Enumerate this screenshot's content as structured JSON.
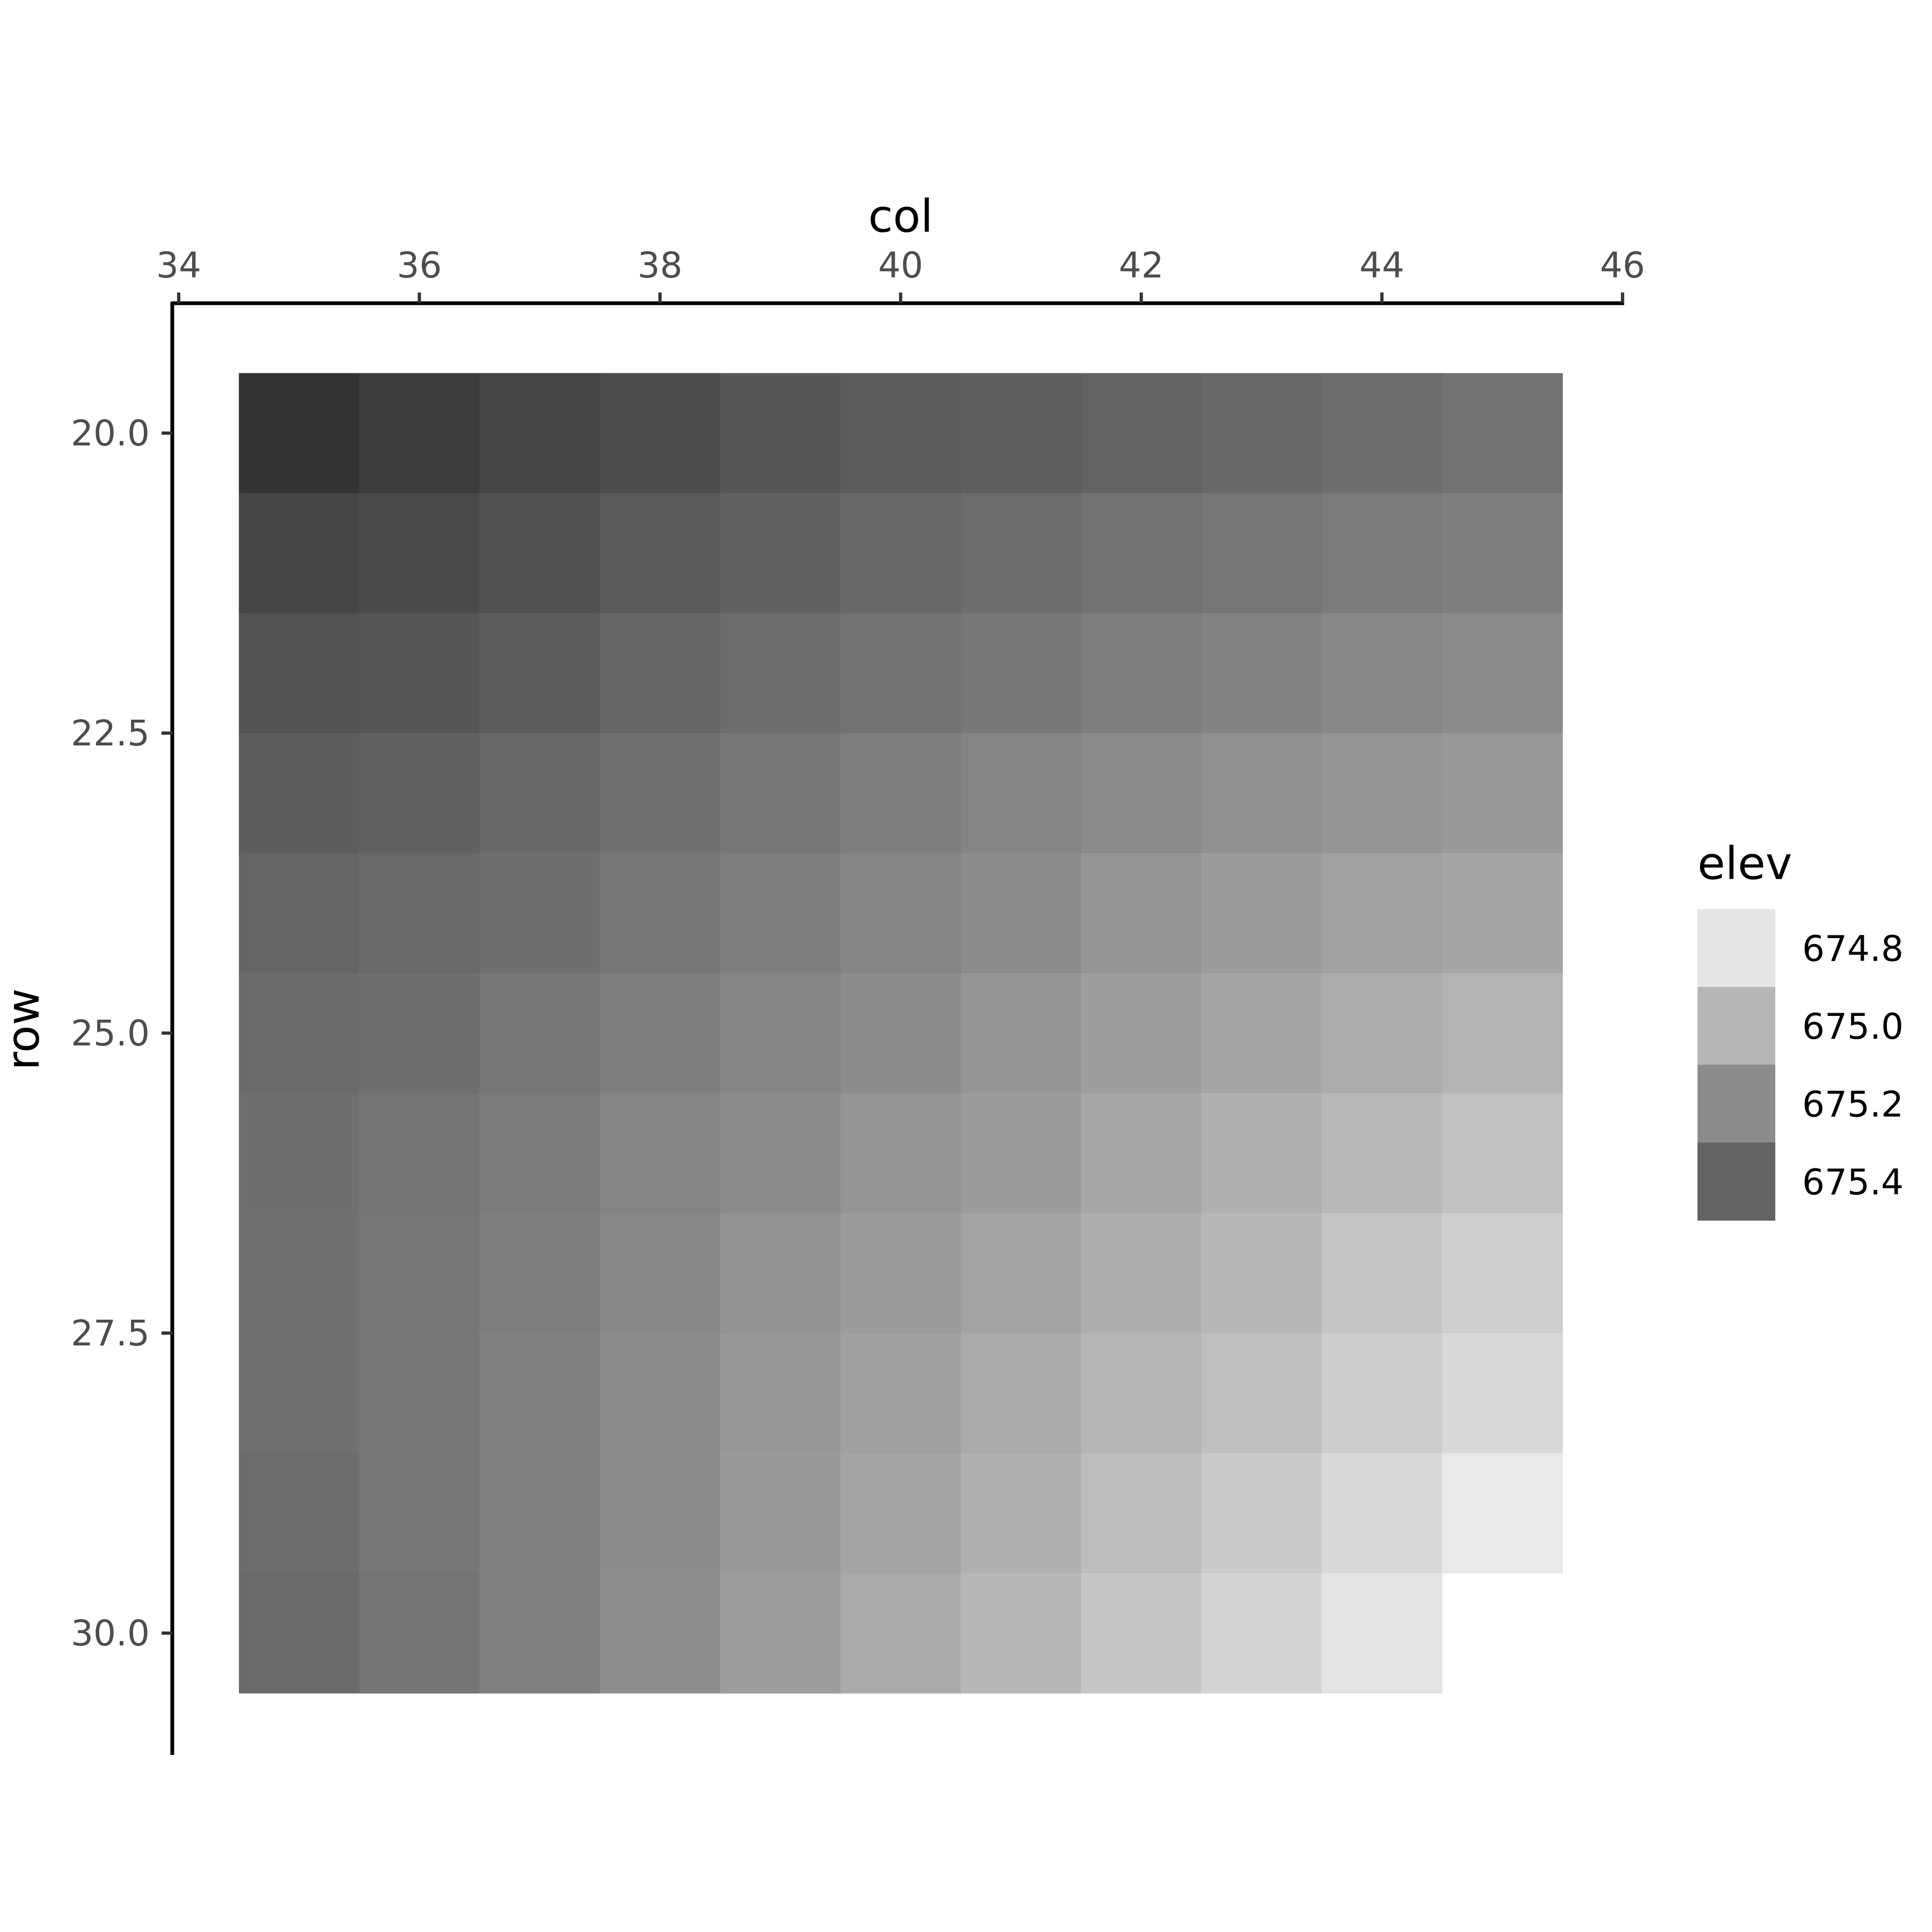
{
  "chart_data": {
    "type": "heatmap",
    "title": "",
    "xlabel": "col",
    "ylabel": "row",
    "x_axis_position": "top",
    "y_reversed": true,
    "xlim": [
      34,
      46
    ],
    "ylim": [
      19.5,
      31
    ],
    "x_ticks": [
      "34",
      "36",
      "38",
      "40",
      "42",
      "44",
      "46"
    ],
    "y_ticks": [
      "20.0",
      "22.5",
      "25.0",
      "27.5",
      "30.0"
    ],
    "x": [
      35,
      36,
      37,
      38,
      39,
      40,
      41,
      42,
      43,
      44,
      45
    ],
    "y": [
      20,
      21,
      22,
      23,
      24,
      25,
      26,
      27,
      28,
      29,
      30
    ],
    "z": [
      [
        675.6,
        675.55,
        675.5,
        675.45,
        675.4,
        675.37,
        675.35,
        675.33,
        675.3,
        675.27,
        675.24
      ],
      [
        675.5,
        675.47,
        675.43,
        675.38,
        675.34,
        675.3,
        675.27,
        675.24,
        675.22,
        675.19,
        675.17
      ],
      [
        675.42,
        675.4,
        675.36,
        675.31,
        675.27,
        675.24,
        675.21,
        675.18,
        675.15,
        675.12,
        675.1
      ],
      [
        675.36,
        675.34,
        675.3,
        675.25,
        675.22,
        675.18,
        675.14,
        675.1,
        675.07,
        675.04,
        675.02
      ],
      [
        675.32,
        675.29,
        675.26,
        675.22,
        675.18,
        675.14,
        675.09,
        675.04,
        675.0,
        674.97,
        674.95
      ],
      [
        675.28,
        675.26,
        675.22,
        675.18,
        675.14,
        675.09,
        675.04,
        674.99,
        674.95,
        674.91,
        674.87
      ],
      [
        675.26,
        675.23,
        675.19,
        675.14,
        675.09,
        675.04,
        675.0,
        674.94,
        674.89,
        674.84,
        674.79
      ],
      [
        675.25,
        675.22,
        675.17,
        675.12,
        675.06,
        675.01,
        674.96,
        674.9,
        674.85,
        674.77,
        674.71
      ],
      [
        675.25,
        675.21,
        675.16,
        675.1,
        675.03,
        674.98,
        674.92,
        674.86,
        674.8,
        674.72,
        674.66
      ],
      [
        675.27,
        675.22,
        675.16,
        675.09,
        675.02,
        674.95,
        674.89,
        674.82,
        674.74,
        674.66,
        674.56
      ],
      [
        675.28,
        675.23,
        675.16,
        675.08,
        674.99,
        674.92,
        674.85,
        674.76,
        674.68,
        674.59,
        null
      ]
    ],
    "color_scale": {
      "low_value": 674.5,
      "low_color": "#f4f4f4",
      "high_value": 675.6,
      "high_color": "#333333"
    },
    "legend": {
      "title": "elev",
      "position": "right",
      "entries": [
        {
          "label": "674.8",
          "color": "#e5e5e5"
        },
        {
          "label": "675.0",
          "color": "#b7b7b7"
        },
        {
          "label": "675.2",
          "color": "#8c8c8c"
        },
        {
          "label": "675.4",
          "color": "#636363"
        }
      ]
    },
    "grid": false
  }
}
